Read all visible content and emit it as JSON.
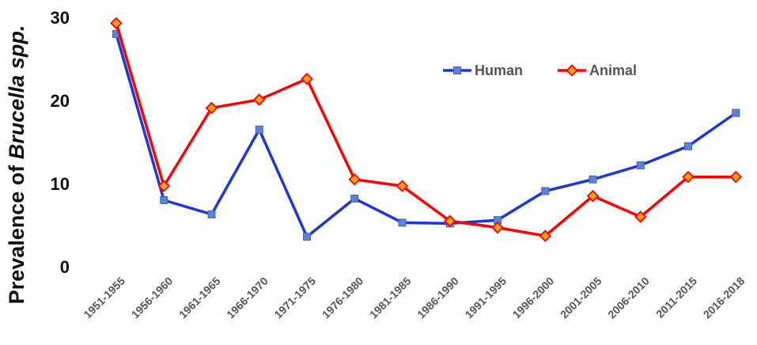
{
  "chart_data": {
    "type": "line",
    "ylabel_parts": [
      "Prevalence of ",
      "Brucella spp."
    ],
    "ylim": [
      0,
      30
    ],
    "yticks": [
      "0",
      "10",
      "20",
      "30"
    ],
    "grid": false,
    "legend_position": "top-right",
    "categories": [
      "1951-1955",
      "1956-1960",
      "1961-1965",
      "1966-1970",
      "1971-1975",
      "1976-1980",
      "1981-1985",
      "1986-1990",
      "1991-1995",
      "1996-2000",
      "2001-2005",
      "2006-2010",
      "2011-2015",
      "2016-2018"
    ],
    "series": [
      {
        "name": "Human",
        "color": "#1f36d6",
        "marker": "square",
        "values": [
          28.0,
          8.0,
          6.3,
          16.5,
          3.6,
          8.2,
          5.3,
          5.2,
          5.6,
          9.1,
          10.5,
          12.2,
          14.5,
          18.5
        ]
      },
      {
        "name": "Animal",
        "color": "#ff0000",
        "marker": "diamond",
        "values": [
          29.3,
          9.7,
          19.1,
          20.1,
          22.6,
          10.5,
          9.7,
          5.5,
          4.7,
          3.7,
          8.5,
          6.0,
          10.8,
          10.8
        ]
      }
    ]
  }
}
